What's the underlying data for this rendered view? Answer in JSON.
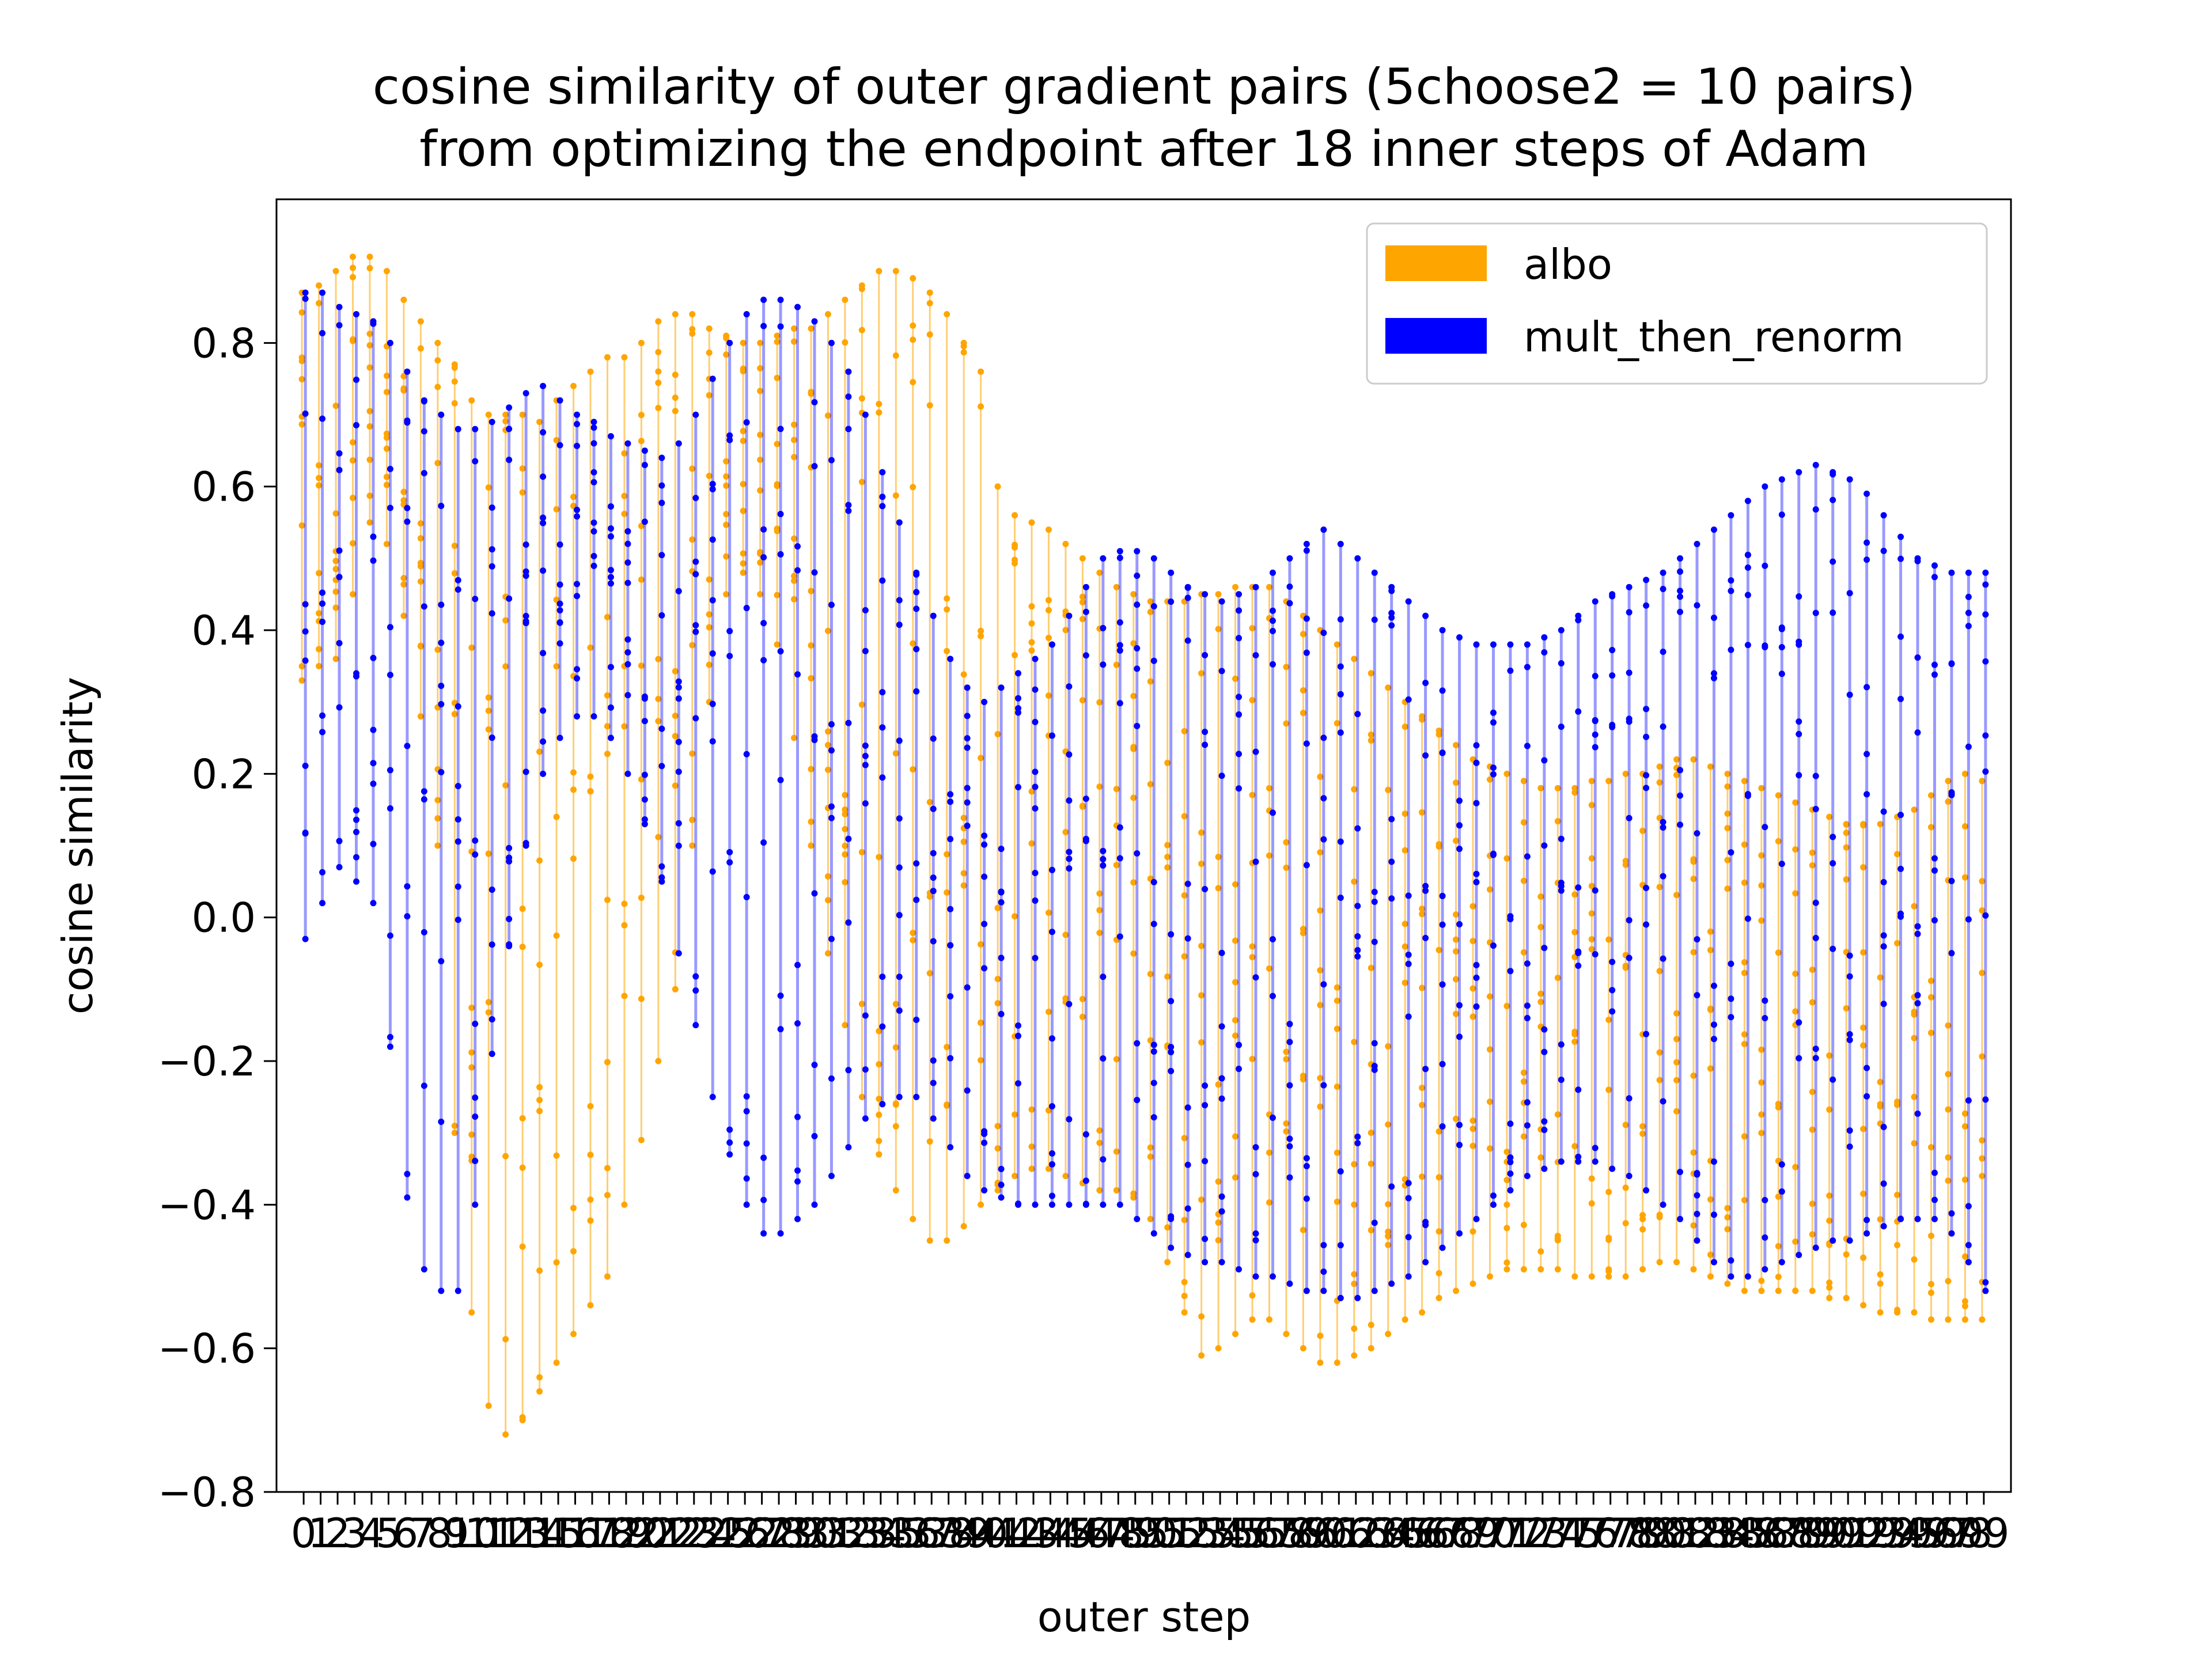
{
  "chart_data": {
    "type": "scatter",
    "title": "cosine similarity of outer gradient pairs (5choose2 = 10 pairs)",
    "subtitle": "from optimizing the endpoint after 18 inner steps of Adam",
    "xlabel": "outer step",
    "ylabel": "cosine similarity",
    "xlim": [
      -1.6,
      100.6
    ],
    "ylim": [
      -0.8,
      1.0
    ],
    "yticks": [
      "0.8",
      "0.6",
      "0.4",
      "0.2",
      "0.0",
      "−0.2",
      "−0.4",
      "−0.6",
      "−0.8"
    ],
    "ytick_values": [
      0.8,
      0.6,
      0.4,
      0.2,
      0.0,
      -0.2,
      -0.4,
      -0.6,
      -0.8
    ],
    "x_steps": 100,
    "pairs_per_step": 10,
    "grid": false,
    "legend_position": "upper right",
    "series": [
      {
        "name": "albo",
        "color": "#ffa500",
        "max": [
          0.87,
          0.88,
          0.9,
          0.92,
          0.92,
          0.9,
          0.86,
          0.83,
          0.8,
          0.77,
          0.72,
          0.7,
          0.7,
          0.7,
          0.69,
          0.72,
          0.74,
          0.76,
          0.78,
          0.78,
          0.8,
          0.83,
          0.84,
          0.84,
          0.82,
          0.81,
          0.8,
          0.8,
          0.81,
          0.82,
          0.82,
          0.84,
          0.86,
          0.88,
          0.9,
          0.9,
          0.89,
          0.87,
          0.84,
          0.8,
          0.76,
          0.6,
          0.56,
          0.55,
          0.54,
          0.52,
          0.5,
          0.48,
          0.46,
          0.45,
          0.44,
          0.44,
          0.44,
          0.45,
          0.45,
          0.46,
          0.46,
          0.46,
          0.44,
          0.42,
          0.4,
          0.38,
          0.36,
          0.34,
          0.32,
          0.3,
          0.28,
          0.26,
          0.24,
          0.22,
          0.21,
          0.2,
          0.19,
          0.18,
          0.18,
          0.18,
          0.19,
          0.19,
          0.2,
          0.2,
          0.21,
          0.22,
          0.22,
          0.21,
          0.2,
          0.19,
          0.18,
          0.17,
          0.16,
          0.15,
          0.14,
          0.13,
          0.13,
          0.13,
          0.14,
          0.15,
          0.17,
          0.19,
          0.2,
          0.19
        ],
        "min": [
          0.33,
          0.35,
          0.36,
          0.45,
          0.55,
          0.52,
          0.42,
          0.28,
          0.1,
          -0.3,
          -0.55,
          -0.68,
          -0.72,
          -0.7,
          -0.66,
          -0.62,
          -0.58,
          -0.54,
          -0.5,
          -0.4,
          -0.31,
          -0.2,
          -0.1,
          0.1,
          0.3,
          0.45,
          0.48,
          0.45,
          0.38,
          0.25,
          0.1,
          -0.05,
          -0.15,
          -0.25,
          -0.33,
          -0.38,
          -0.42,
          -0.45,
          -0.45,
          -0.43,
          -0.4,
          -0.38,
          -0.36,
          -0.35,
          -0.35,
          -0.36,
          -0.37,
          -0.38,
          -0.38,
          -0.39,
          -0.42,
          -0.48,
          -0.55,
          -0.61,
          -0.6,
          -0.58,
          -0.56,
          -0.56,
          -0.58,
          -0.6,
          -0.62,
          -0.62,
          -0.61,
          -0.6,
          -0.58,
          -0.56,
          -0.55,
          -0.53,
          -0.52,
          -0.51,
          -0.5,
          -0.49,
          -0.49,
          -0.49,
          -0.49,
          -0.5,
          -0.5,
          -0.5,
          -0.5,
          -0.49,
          -0.48,
          -0.48,
          -0.49,
          -0.5,
          -0.51,
          -0.52,
          -0.52,
          -0.52,
          -0.52,
          -0.52,
          -0.53,
          -0.53,
          -0.54,
          -0.55,
          -0.55,
          -0.55,
          -0.56,
          -0.56,
          -0.56,
          -0.56
        ]
      },
      {
        "name": "mult_then_renorm",
        "color": "#0000ff",
        "max": [
          0.87,
          0.87,
          0.85,
          0.84,
          0.83,
          0.8,
          0.76,
          0.72,
          0.7,
          0.68,
          0.68,
          0.69,
          0.71,
          0.73,
          0.74,
          0.72,
          0.7,
          0.69,
          0.67,
          0.66,
          0.65,
          0.64,
          0.66,
          0.7,
          0.75,
          0.8,
          0.84,
          0.86,
          0.86,
          0.85,
          0.83,
          0.8,
          0.76,
          0.7,
          0.62,
          0.55,
          0.48,
          0.42,
          0.36,
          0.32,
          0.3,
          0.32,
          0.34,
          0.36,
          0.38,
          0.42,
          0.46,
          0.5,
          0.51,
          0.51,
          0.5,
          0.48,
          0.46,
          0.45,
          0.44,
          0.45,
          0.46,
          0.48,
          0.5,
          0.52,
          0.54,
          0.52,
          0.5,
          0.48,
          0.46,
          0.44,
          0.42,
          0.4,
          0.39,
          0.38,
          0.38,
          0.38,
          0.38,
          0.39,
          0.4,
          0.42,
          0.44,
          0.45,
          0.46,
          0.47,
          0.48,
          0.5,
          0.52,
          0.54,
          0.56,
          0.58,
          0.6,
          0.61,
          0.62,
          0.63,
          0.62,
          0.61,
          0.59,
          0.56,
          0.53,
          0.5,
          0.49,
          0.48,
          0.48,
          0.48
        ],
        "min": [
          -0.03,
          0.02,
          0.07,
          0.05,
          0.02,
          -0.18,
          -0.39,
          -0.49,
          -0.52,
          -0.52,
          -0.4,
          -0.19,
          -0.04,
          0.1,
          0.2,
          0.25,
          0.28,
          0.28,
          0.25,
          0.2,
          0.13,
          0.05,
          -0.05,
          -0.15,
          -0.25,
          -0.33,
          -0.4,
          -0.44,
          -0.44,
          -0.42,
          -0.4,
          -0.36,
          -0.32,
          -0.28,
          -0.26,
          -0.25,
          -0.25,
          -0.28,
          -0.32,
          -0.36,
          -0.38,
          -0.39,
          -0.4,
          -0.4,
          -0.4,
          -0.4,
          -0.4,
          -0.4,
          -0.4,
          -0.42,
          -0.44,
          -0.46,
          -0.47,
          -0.48,
          -0.48,
          -0.49,
          -0.5,
          -0.5,
          -0.51,
          -0.52,
          -0.52,
          -0.53,
          -0.53,
          -0.52,
          -0.51,
          -0.5,
          -0.48,
          -0.46,
          -0.44,
          -0.42,
          -0.4,
          -0.38,
          -0.36,
          -0.35,
          -0.34,
          -0.34,
          -0.34,
          -0.35,
          -0.36,
          -0.38,
          -0.4,
          -0.42,
          -0.45,
          -0.48,
          -0.5,
          -0.5,
          -0.49,
          -0.48,
          -0.47,
          -0.46,
          -0.45,
          -0.45,
          -0.44,
          -0.43,
          -0.42,
          -0.42,
          -0.42,
          -0.44,
          -0.48,
          -0.52
        ]
      }
    ]
  }
}
